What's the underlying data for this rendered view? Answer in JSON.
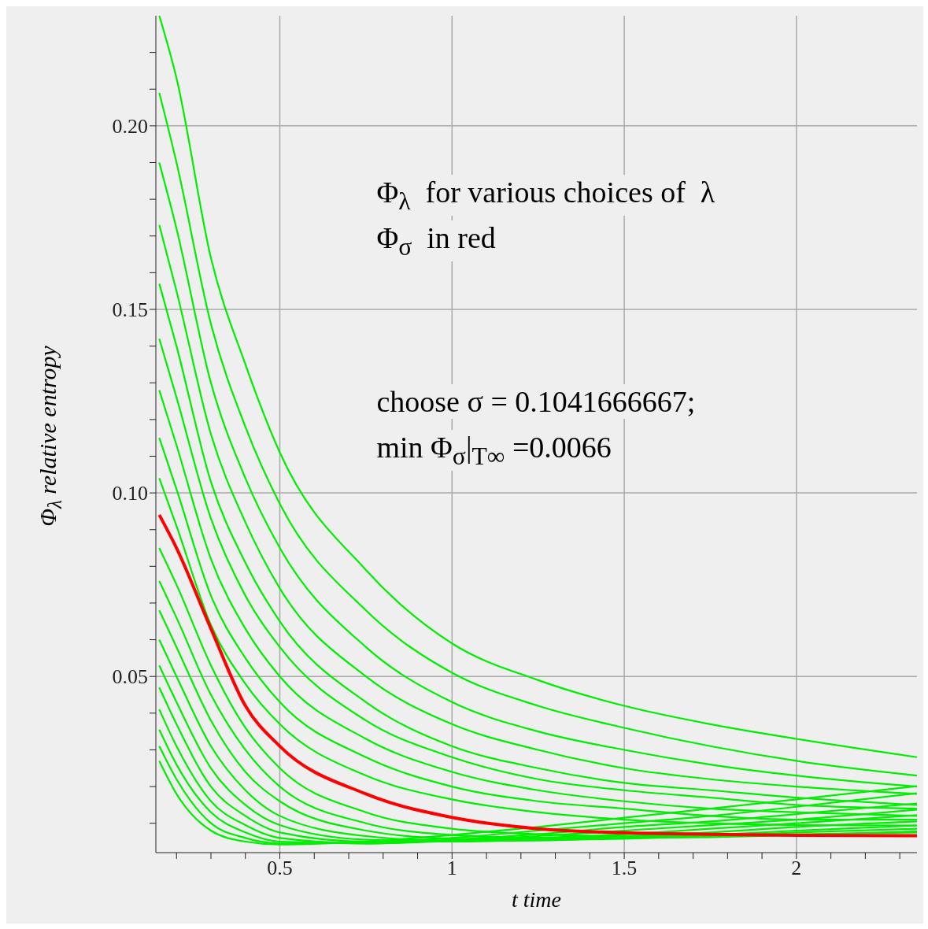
{
  "chart_data": {
    "type": "line",
    "xlabel": "t time",
    "ylabel": "Φ$_{λ}$ relative entropy",
    "annotations": [
      "Φ$_{λ}$  for various choices of  λ",
      "Φ$_{σ}$  in red",
      "choose σ = 0.1041666667;",
      "min Φ$_{σ}$|$_{T∞}$ =0.0066"
    ],
    "x": [
      0.15,
      0.2,
      0.3,
      0.4,
      0.5,
      0.75,
      1,
      1.25,
      1.5,
      1.75,
      2,
      2.35
    ],
    "xlim": [
      0.14,
      2.35
    ],
    "xticks": [
      {
        "value": 0.2,
        "label": null
      },
      {
        "value": 0.3,
        "label": null
      },
      {
        "value": 0.4,
        "label": null
      },
      {
        "value": 0.5,
        "label": "0.5"
      },
      {
        "value": 0.6,
        "label": null
      },
      {
        "value": 0.7,
        "label": null
      },
      {
        "value": 0.8,
        "label": null
      },
      {
        "value": 0.9,
        "label": null
      },
      1,
      {
        "value": 1.1,
        "label": null
      },
      {
        "value": 1.2,
        "label": null
      },
      {
        "value": 1.3,
        "label": null
      },
      {
        "value": 1.4,
        "label": null
      },
      1.5,
      {
        "value": 1.6,
        "label": null
      },
      {
        "value": 1.7,
        "label": null
      },
      {
        "value": 1.8,
        "label": null
      },
      {
        "value": 1.9,
        "label": null
      },
      2,
      {
        "value": 2.1,
        "label": null
      },
      {
        "value": 2.2,
        "label": null
      },
      {
        "value": 2.3,
        "label": null
      }
    ],
    "ylim": [
      0.002,
      0.23
    ],
    "yticks": [
      {
        "value": 0.01,
        "label": null
      },
      {
        "value": 0.02,
        "label": null
      },
      {
        "value": 0.03,
        "label": null
      },
      {
        "value": 0.04,
        "label": null
      },
      0.05,
      {
        "value": 0.06,
        "label": null
      },
      {
        "value": 0.07,
        "label": null
      },
      {
        "value": 0.08,
        "label": null
      },
      {
        "value": 0.09,
        "label": null
      },
      {
        "value": 0.1,
        "label": "0.10"
      },
      {
        "value": 0.11,
        "label": null
      },
      {
        "value": 0.12,
        "label": null
      },
      {
        "value": 0.13,
        "label": null
      },
      {
        "value": 0.14,
        "label": null
      },
      0.15,
      {
        "value": 0.16,
        "label": null
      },
      {
        "value": 0.17,
        "label": null
      },
      {
        "value": 0.18,
        "label": null
      },
      {
        "value": 0.19,
        "label": null
      },
      {
        "value": 0.2,
        "label": "0.20"
      },
      {
        "value": 0.21,
        "label": null
      },
      {
        "value": 0.22,
        "label": null
      }
    ],
    "grid": true,
    "marker": "none",
    "line_style": "solid",
    "series": [
      {
        "color": "#00ee00",
        "values": [
          0.23,
          0.213,
          0.164,
          0.135,
          0.111,
          0.079,
          0.059,
          0.049,
          0.042,
          0.037,
          0.033,
          0.028
        ]
      },
      {
        "color": "#00ee00",
        "values": [
          0.209,
          0.19,
          0.146,
          0.118,
          0.097,
          0.068,
          0.051,
          0.042,
          0.036,
          0.031,
          0.027,
          0.023
        ]
      },
      {
        "color": "#00ee00",
        "values": [
          0.19,
          0.172,
          0.13,
          0.104,
          0.085,
          0.058,
          0.043,
          0.035,
          0.03,
          0.026,
          0.023,
          0.02
        ]
      },
      {
        "color": "#00ee00",
        "values": [
          0.173,
          0.155,
          0.116,
          0.092,
          0.074,
          0.05,
          0.037,
          0.03,
          0.025,
          0.022,
          0.02,
          0.018
        ]
      },
      {
        "color": "#00ee00",
        "values": [
          0.157,
          0.14,
          0.103,
          0.081,
          0.065,
          0.043,
          0.031,
          0.025,
          0.021,
          0.019,
          0.017,
          0.015
        ]
      },
      {
        "color": "#00ee00",
        "values": [
          0.142,
          0.126,
          0.093,
          0.072,
          0.058,
          0.038,
          0.028,
          0.022,
          0.019,
          0.017,
          0.015,
          0.014
        ]
      },
      {
        "color": "#00ee00",
        "values": [
          0.128,
          0.113,
          0.082,
          0.063,
          0.05,
          0.033,
          0.024,
          0.019,
          0.016,
          0.014,
          0.013,
          0.012
        ]
      },
      {
        "color": "#00ee00",
        "values": [
          0.115,
          0.101,
          0.072,
          0.055,
          0.043,
          0.028,
          0.02,
          0.016,
          0.014,
          0.012,
          0.011,
          0.011
        ]
      },
      {
        "color": "#00ee00",
        "values": [
          0.104,
          0.091,
          0.064,
          0.048,
          0.037,
          0.023,
          0.0165,
          0.013,
          0.011,
          0.01,
          0.0095,
          0.0094
        ]
      },
      {
        "color": "#00ee00",
        "values": [
          0.085,
          0.075,
          0.053,
          0.036,
          0.025,
          0.013,
          0.0085,
          0.007,
          0.0065,
          0.0065,
          0.007,
          0.0075
        ]
      },
      {
        "color": "#00ee00",
        "values": [
          0.076,
          0.066,
          0.045,
          0.03,
          0.02,
          0.01,
          0.0068,
          0.006,
          0.006,
          0.0062,
          0.0068,
          0.0078
        ]
      },
      {
        "color": "#00ee00",
        "values": [
          0.068,
          0.058,
          0.038,
          0.024,
          0.016,
          0.008,
          0.0058,
          0.0055,
          0.0058,
          0.0065,
          0.0075,
          0.0085
        ]
      },
      {
        "color": "#00ee00",
        "values": [
          0.06,
          0.05,
          0.031,
          0.019,
          0.012,
          0.0065,
          0.0052,
          0.0053,
          0.006,
          0.0068,
          0.008,
          0.0094
        ]
      },
      {
        "color": "#00ee00",
        "values": [
          0.053,
          0.043,
          0.025,
          0.015,
          0.0095,
          0.0055,
          0.005,
          0.0055,
          0.0065,
          0.0075,
          0.009,
          0.0105
        ]
      },
      {
        "color": "#00ee00",
        "values": [
          0.047,
          0.037,
          0.02,
          0.012,
          0.0075,
          0.005,
          0.005,
          0.006,
          0.007,
          0.0085,
          0.01,
          0.0122
        ]
      },
      {
        "color": "#00ee00",
        "values": [
          0.041,
          0.031,
          0.016,
          0.0095,
          0.006,
          0.0045,
          0.0052,
          0.0065,
          0.008,
          0.0095,
          0.011,
          0.0137
        ]
      },
      {
        "color": "#00ee00",
        "values": [
          0.0355,
          0.026,
          0.013,
          0.0075,
          0.005,
          0.0045,
          0.0055,
          0.007,
          0.009,
          0.0105,
          0.0125,
          0.0154
        ]
      },
      {
        "color": "#00ee00",
        "values": [
          0.031,
          0.022,
          0.01,
          0.006,
          0.0045,
          0.0048,
          0.006,
          0.008,
          0.01,
          0.012,
          0.0145,
          0.0182
        ]
      },
      {
        "color": "#00ee00",
        "values": [
          0.027,
          0.018,
          0.008,
          0.005,
          0.0042,
          0.005,
          0.0068,
          0.009,
          0.0115,
          0.014,
          0.0165,
          0.0201
        ]
      },
      {
        "color": "#ff0000",
        "values": [
          0.094,
          0.085,
          0.063,
          0.042,
          0.031,
          0.018,
          0.0116,
          0.0085,
          0.0074,
          0.007,
          0.0067,
          0.0066
        ]
      }
    ]
  }
}
